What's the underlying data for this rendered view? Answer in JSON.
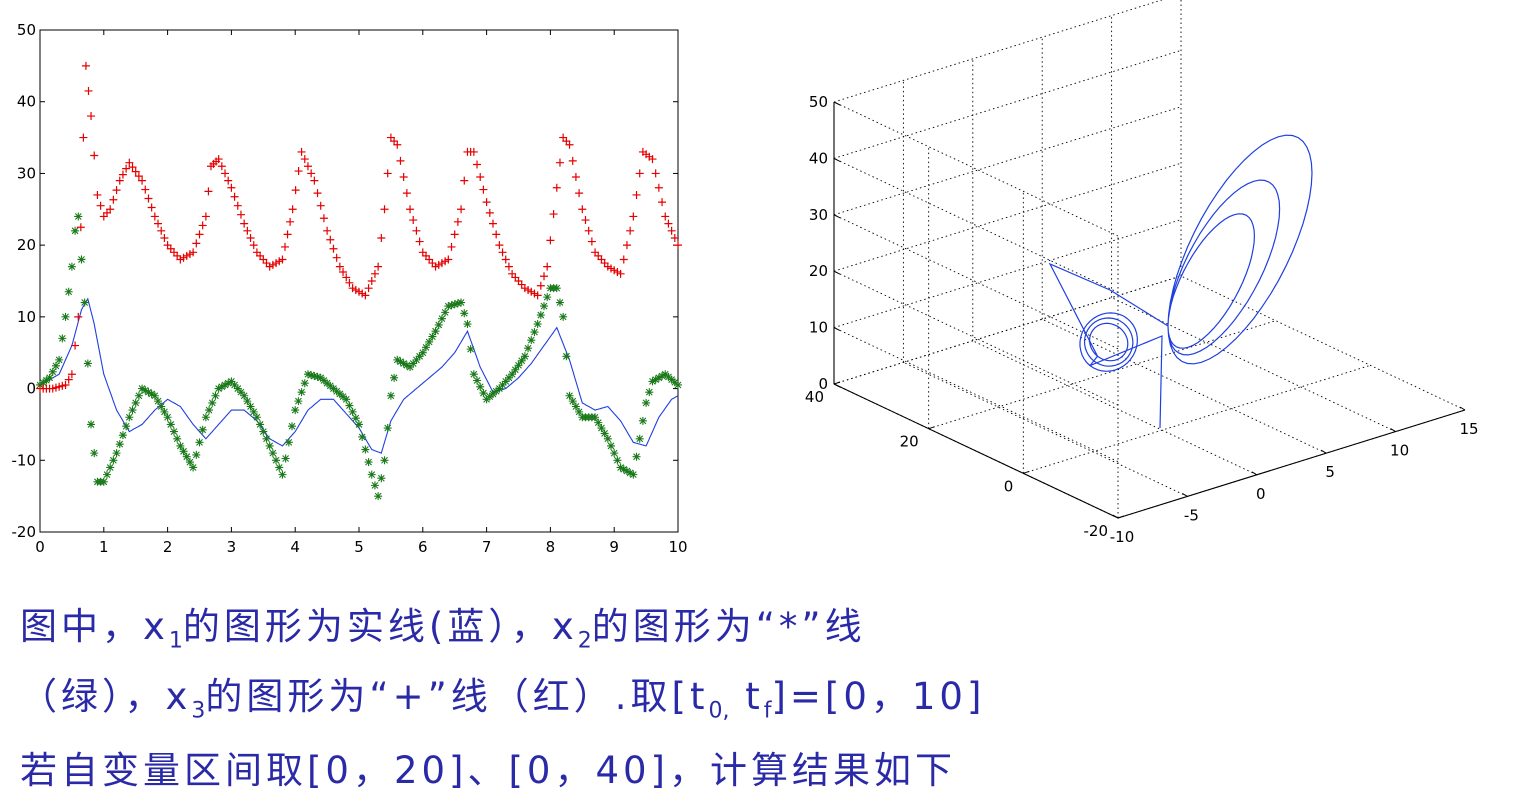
{
  "chart_data": [
    {
      "type": "line",
      "xlim": [
        0,
        10
      ],
      "ylim": [
        -20,
        50
      ],
      "x_ticks": [
        "0",
        "1",
        "2",
        "3",
        "4",
        "5",
        "6",
        "7",
        "8",
        "9",
        "10"
      ],
      "y_ticks": [
        "-20",
        "-10",
        "0",
        "10",
        "20",
        "30",
        "40",
        "50"
      ],
      "grid": false,
      "series": [
        {
          "marker": "line",
          "color": "#1f3fe0",
          "x": [
            0,
            0.3,
            0.5,
            0.65,
            0.75,
            0.85,
            1.0,
            1.2,
            1.4,
            1.6,
            1.8,
            2.0,
            2.2,
            2.4,
            2.6,
            2.8,
            3.0,
            3.2,
            3.4,
            3.6,
            3.8,
            4.0,
            4.2,
            4.4,
            4.6,
            4.8,
            5.0,
            5.2,
            5.35,
            5.5,
            5.7,
            5.9,
            6.1,
            6.3,
            6.5,
            6.7,
            6.9,
            7.1,
            7.3,
            7.5,
            7.7,
            7.9,
            8.1,
            8.3,
            8.5,
            8.7,
            8.9,
            9.1,
            9.3,
            9.5,
            9.7,
            9.9,
            10.0
          ],
          "y": [
            0.5,
            2,
            6,
            11,
            12.5,
            9,
            2,
            -3,
            -6,
            -5,
            -3,
            -1.5,
            -2.5,
            -5,
            -7,
            -5,
            -3,
            -3,
            -4.5,
            -7,
            -8,
            -6,
            -3,
            -1.5,
            -1.5,
            -3.5,
            -5.5,
            -8.5,
            -9,
            -4.5,
            -1.5,
            0,
            1.5,
            3,
            5,
            8,
            3,
            -0.5,
            0,
            1.5,
            3.5,
            6,
            8.5,
            4,
            -2,
            -3,
            -2.5,
            -4.5,
            -7.5,
            -8,
            -4,
            -1.5,
            -1
          ]
        },
        {
          "marker": "*",
          "color": "#1a7a1a",
          "x": [
            0,
            0.15,
            0.3,
            0.4,
            0.5,
            0.55,
            0.6,
            0.7,
            0.8,
            0.9,
            1.0,
            1.2,
            1.4,
            1.6,
            1.8,
            2.0,
            2.2,
            2.4,
            2.6,
            2.8,
            3.0,
            3.2,
            3.4,
            3.6,
            3.8,
            4.0,
            4.2,
            4.4,
            4.6,
            4.8,
            5.0,
            5.2,
            5.3,
            5.4,
            5.5,
            5.6,
            5.8,
            6.0,
            6.2,
            6.4,
            6.6,
            6.7,
            6.8,
            7.0,
            7.2,
            7.4,
            7.6,
            7.8,
            8.0,
            8.1,
            8.2,
            8.3,
            8.5,
            8.7,
            8.9,
            9.1,
            9.3,
            9.5,
            9.6,
            9.8,
            10.0
          ],
          "y": [
            0.5,
            1.5,
            4,
            10,
            17,
            22,
            24,
            12,
            -5,
            -13,
            -13,
            -9,
            -4,
            0,
            -1,
            -4,
            -8,
            -11,
            -4,
            0,
            1,
            -1,
            -4,
            -8,
            -12,
            -3,
            2,
            1.5,
            0,
            -1.5,
            -5,
            -12,
            -15,
            -10,
            -1,
            4,
            3,
            5,
            8,
            11.5,
            12,
            9,
            2,
            -1.5,
            0,
            2,
            4.5,
            9,
            14,
            14,
            10,
            -1,
            -4,
            -4,
            -7,
            -11,
            -12,
            -2,
            1,
            2,
            0.5
          ]
        },
        {
          "marker": "+",
          "color": "#e60000",
          "x": [
            0,
            0.2,
            0.4,
            0.5,
            0.6,
            0.68,
            0.72,
            0.8,
            0.9,
            1.0,
            1.1,
            1.25,
            1.4,
            1.6,
            1.8,
            2.0,
            2.2,
            2.4,
            2.6,
            2.68,
            2.8,
            3.0,
            3.2,
            3.4,
            3.6,
            3.8,
            3.96,
            4.1,
            4.3,
            4.5,
            4.7,
            4.9,
            5.1,
            5.3,
            5.4,
            5.5,
            5.6,
            5.8,
            6.0,
            6.2,
            6.4,
            6.6,
            6.7,
            6.8,
            7.0,
            7.2,
            7.4,
            7.6,
            7.8,
            7.95,
            8.1,
            8.2,
            8.3,
            8.5,
            8.7,
            8.9,
            9.1,
            9.3,
            9.45,
            9.6,
            9.8,
            10.0
          ],
          "y": [
            0,
            0,
            0.5,
            2,
            10,
            35,
            45,
            38,
            27,
            24,
            25,
            29,
            31.5,
            29,
            24,
            20,
            18,
            19,
            24,
            31,
            32,
            28,
            23,
            19,
            17,
            18,
            25,
            33,
            29,
            22,
            17,
            14,
            13,
            17,
            25,
            35,
            34,
            25,
            19,
            17,
            18,
            25,
            33,
            33,
            26,
            20,
            16,
            14,
            13,
            17,
            28,
            35,
            34,
            25,
            19,
            17,
            16,
            24,
            33,
            32,
            24,
            20
          ]
        }
      ]
    },
    {
      "type": "line3d",
      "z_ticks": [
        "0",
        "10",
        "20",
        "30",
        "40",
        "50"
      ],
      "y_ticks": [
        "40",
        "20",
        "0",
        "-20"
      ],
      "x_ticks": [
        "-10",
        "-5",
        "0",
        "5",
        "10",
        "15"
      ],
      "series": [
        {
          "color": "#1f3fe0"
        }
      ]
    }
  ],
  "caption": {
    "line1": {
      "a": "图中，x",
      "s1": "1",
      "b": "的图形为实线(蓝），x",
      "s2": "2",
      "c": "的图形为“*”线"
    },
    "line2": {
      "a": "（绿），x",
      "s1": "3",
      "b": "的图形为“+”线（红）.取[t",
      "s2": "0,",
      "c": " t",
      "s3": "f",
      "d": "]=[0，10]"
    },
    "line3": "若自变量区间取[0，20]、[0，40]，计算结果如下"
  }
}
